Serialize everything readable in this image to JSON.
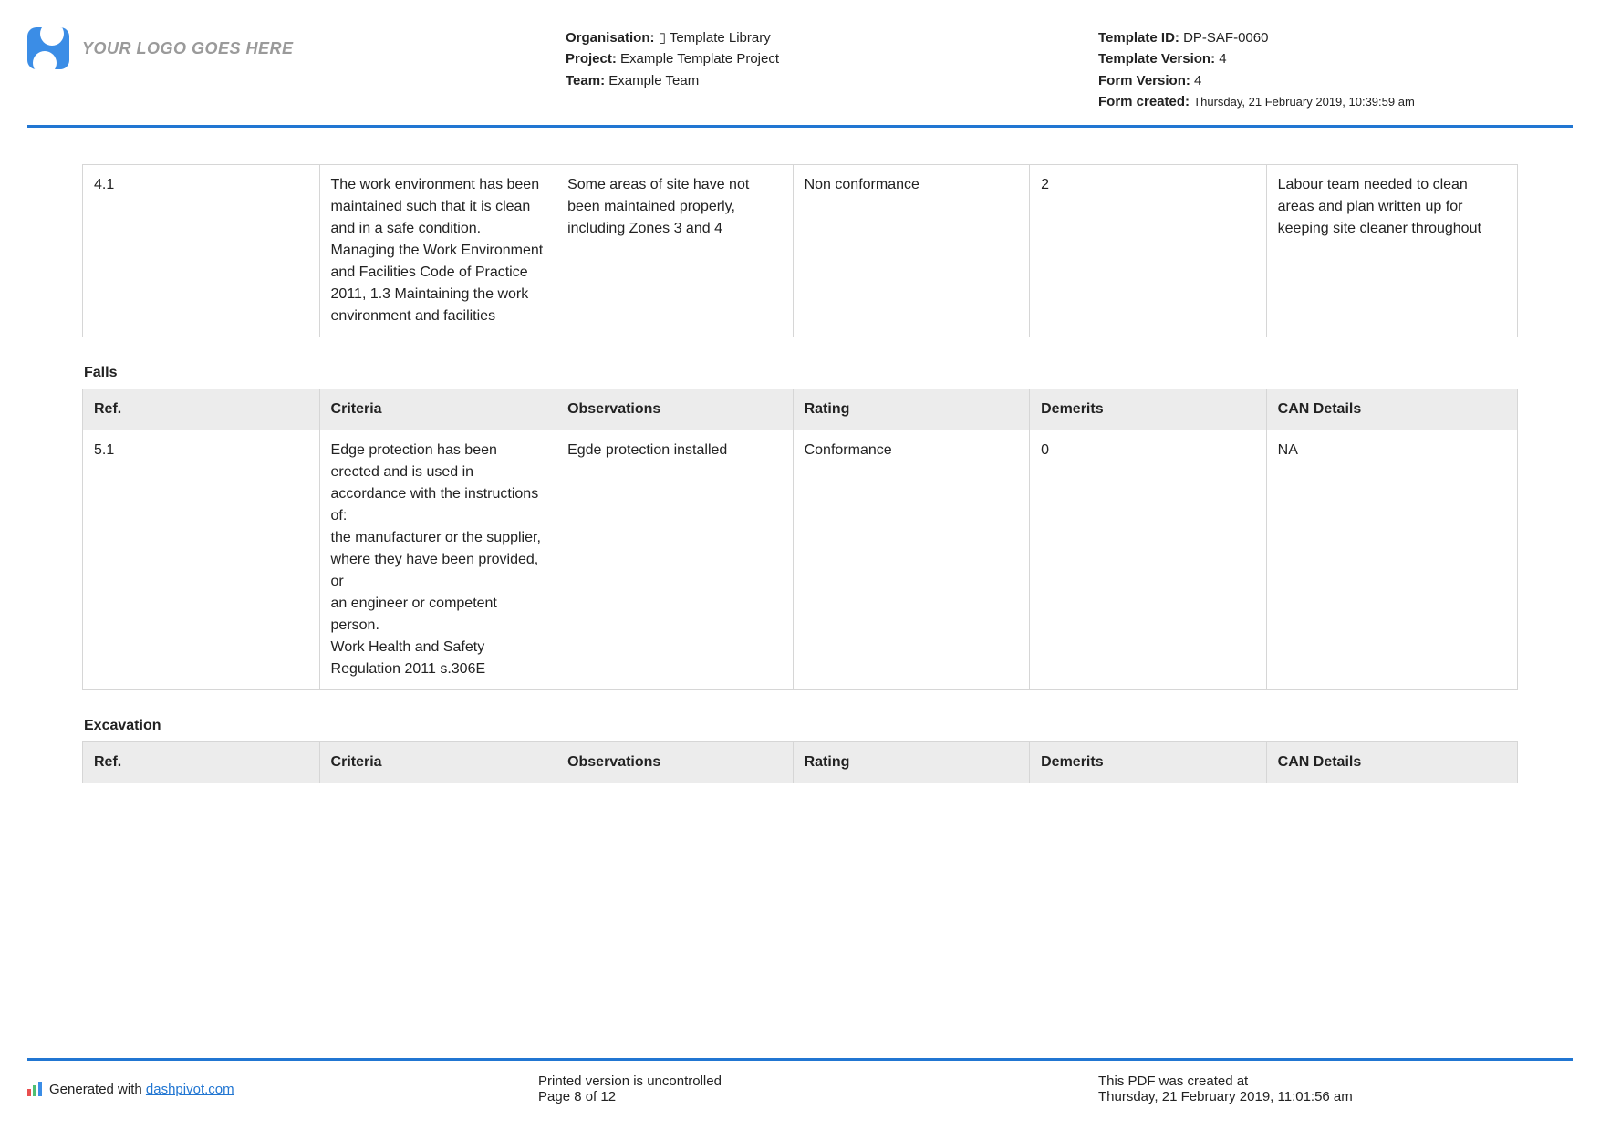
{
  "header": {
    "logo_text": "YOUR LOGO GOES HERE",
    "org_label": "Organisation:",
    "org_value": "▯ Template Library",
    "project_label": "Project:",
    "project_value": "Example Template Project",
    "team_label": "Team:",
    "team_value": "Example Team",
    "tid_label": "Template ID:",
    "tid_value": "DP-SAF-0060",
    "tver_label": "Template Version:",
    "tver_value": "4",
    "fver_label": "Form Version:",
    "fver_value": "4",
    "fcreated_label": "Form created:",
    "fcreated_value": "Thursday, 21 February 2019, 10:39:59 am"
  },
  "columns": {
    "ref": "Ref.",
    "criteria": "Criteria",
    "observations": "Observations",
    "rating": "Rating",
    "demerits": "Demerits",
    "can": "CAN Details"
  },
  "section1_row": {
    "ref": "4.1",
    "criteria": "The work environment has been maintained such that it is clean and in a safe condition. Managing the Work Environment and Facilities Code of Practice 2011, 1.3 Maintaining the work environment and facilities",
    "observations": "Some areas of site have not been maintained properly, including Zones 3 and 4",
    "rating": "Non conformance",
    "demerits": "2",
    "can": "Labour team needed to clean areas and plan written up for keeping site cleaner throughout"
  },
  "section2_title": "Falls",
  "section2_row": {
    "ref": "5.1",
    "criteria": "Edge protection has been erected and is used in accordance with the instructions of:\nthe manufacturer or the supplier, where they have been provided, or\nan engineer or competent person.\nWork Health and Safety Regulation 2011 s.306E",
    "observations": "Egde protection installed",
    "rating": "Conformance",
    "demerits": "0",
    "can": "NA"
  },
  "section3_title": "Excavation",
  "footer": {
    "gen_prefix": "Generated with ",
    "gen_link": "dashpivot.com",
    "uncontrolled": "Printed version is uncontrolled",
    "page": "Page 8 of 12",
    "created_label": "This PDF was created at",
    "created_value": "Thursday, 21 February 2019, 11:01:56 am"
  }
}
